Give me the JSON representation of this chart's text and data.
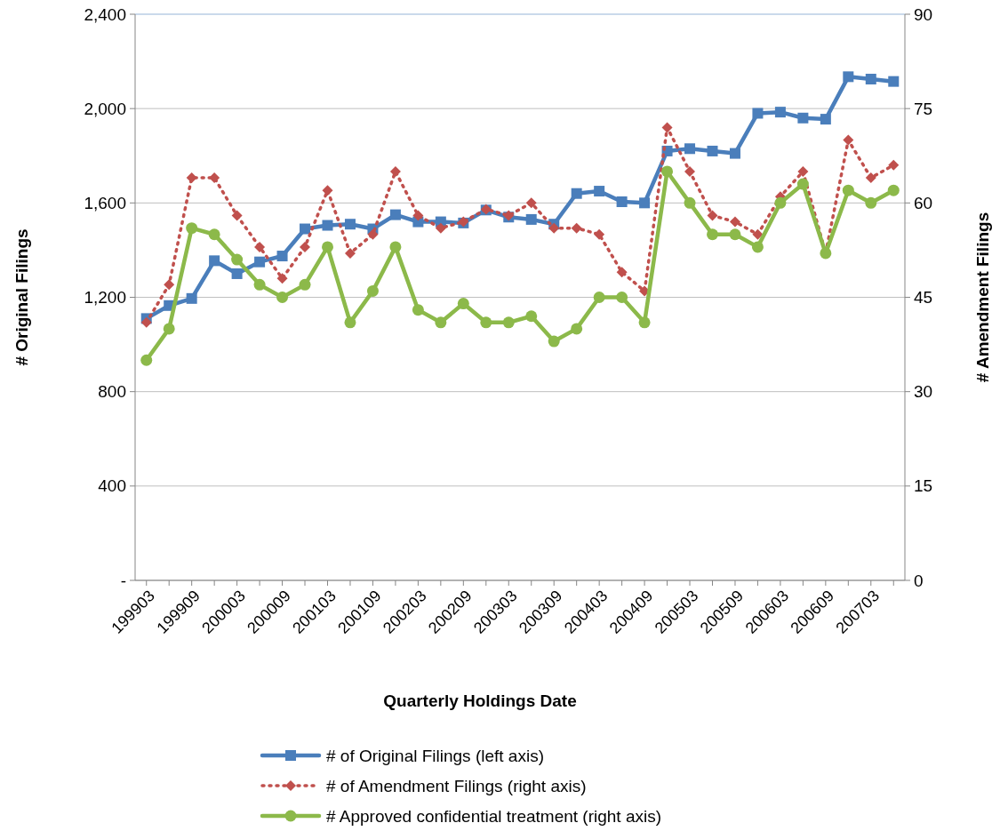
{
  "chart_data": {
    "type": "line",
    "xlabel": "Quarterly Holdings Date",
    "ylabel": "# Original Filings",
    "y2label": "# Amendment Filings",
    "categories": [
      "199903",
      null,
      "199909",
      null,
      "200003",
      null,
      "200009",
      null,
      "200103",
      null,
      "200109",
      null,
      "200203",
      null,
      "200209",
      null,
      "200303",
      null,
      "200309",
      null,
      "200403",
      null,
      "200409",
      null,
      "200503",
      null,
      "200509",
      null,
      "200603",
      null,
      "200609",
      null,
      "200703",
      null
    ],
    "ylim": [
      0,
      2400
    ],
    "yticks": [
      {
        "value": 0,
        "label": "-"
      },
      400,
      800,
      {
        "value": 1200,
        "label": "1,200"
      },
      {
        "value": 1600,
        "label": "1,600"
      },
      {
        "value": 2000,
        "label": "2,000"
      },
      {
        "value": 2400,
        "label": "2,400"
      }
    ],
    "y2lim": [
      0,
      90
    ],
    "y2ticks": [
      0,
      15,
      30,
      45,
      60,
      75,
      90
    ],
    "grid": "y",
    "legend": "bottom",
    "series": [
      {
        "name": "# of Original Filings (left axis)",
        "color": "#4a7ebb",
        "marker": "square",
        "line_style": "solid",
        "values": [
          1110,
          1165,
          1195,
          1355,
          1300,
          1350,
          1375,
          1490,
          1505,
          1510,
          1490,
          1550,
          1520,
          1520,
          1515,
          1570,
          1540,
          1530,
          1510,
          1640,
          1650,
          1605,
          1600,
          1820,
          1830,
          1820,
          1810,
          1980,
          1985,
          1960,
          1955,
          2135,
          2125,
          2115
        ]
      },
      {
        "name": "# of Amendment Filings (right axis)",
        "color": "#c0504d",
        "axis": "y2",
        "marker": "diamond",
        "line_style": "dotted",
        "values": [
          41,
          47,
          64,
          64,
          58,
          53,
          48,
          53,
          62,
          52,
          55,
          65,
          58,
          56,
          57,
          59,
          58,
          60,
          56,
          56,
          55,
          49,
          46,
          72,
          65,
          58,
          57,
          55,
          61,
          65,
          52,
          70,
          64,
          66
        ]
      },
      {
        "name": "# Approved confidential treatment (right axis)",
        "color": "#8cb94a",
        "axis": "y2",
        "marker": "circle",
        "line_style": "solid",
        "values": [
          35,
          40,
          56,
          55,
          51,
          47,
          45,
          47,
          53,
          41,
          46,
          53,
          43,
          41,
          44,
          41,
          41,
          42,
          38,
          40,
          45,
          45,
          41,
          65,
          60,
          55,
          55,
          53,
          60,
          63,
          52,
          62,
          60,
          62
        ]
      }
    ]
  }
}
